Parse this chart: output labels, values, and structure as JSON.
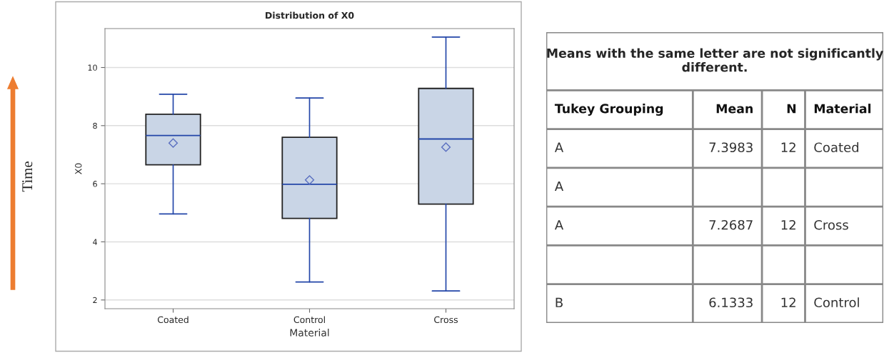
{
  "chart_data": [
    {
      "type": "box",
      "title": "Distribution of X0",
      "xlabel": "Material",
      "ylabel": "X0",
      "categories": [
        "Coated",
        "Control",
        "Cross"
      ],
      "boxes": [
        {
          "low": 4.96,
          "q1": 6.65,
          "median": 7.66,
          "q3": 8.39,
          "high": 9.08,
          "mean": 7.4
        },
        {
          "low": 2.62,
          "q1": 4.81,
          "median": 5.98,
          "q3": 7.6,
          "high": 8.95,
          "mean": 6.13
        },
        {
          "low": 2.31,
          "q1": 5.3,
          "median": 7.54,
          "q3": 9.28,
          "high": 11.05,
          "mean": 7.26
        }
      ],
      "color": "#c9d5e6",
      "ylim": [
        1.7,
        11.34
      ],
      "yticks": [
        2,
        4,
        6,
        8,
        10
      ],
      "grid": "y",
      "marker": "diamond",
      "annotations": [
        "Time"
      ]
    },
    {
      "type": "other",
      "title": "Means with the same letter are not significantly different.",
      "categories": [
        "Tukey Grouping",
        "Mean",
        "N",
        "Material"
      ],
      "cell_labels": [
        [
          "A",
          "7.3983",
          "12",
          "Coated"
        ],
        [
          "A",
          null,
          null,
          null
        ],
        [
          "A",
          "7.2687",
          "12",
          "Cross"
        ],
        [
          null,
          null,
          null,
          null
        ],
        [
          "B",
          "6.1333",
          "12",
          "Control"
        ]
      ]
    }
  ]
}
